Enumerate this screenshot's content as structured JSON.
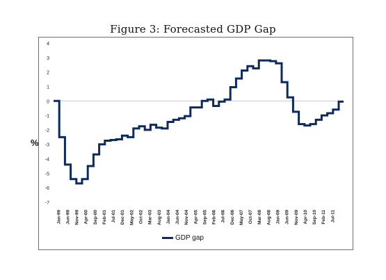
{
  "figure": {
    "title": "Figure 3: Forecasted GDP Gap"
  },
  "chart_data": {
    "type": "line",
    "title": "Figure 3: Forecasted GDP Gap",
    "xlabel": "",
    "ylabel": "%",
    "ylim": [
      -7,
      4
    ],
    "yticks": [
      "4",
      "3",
      "2",
      "1",
      "0",
      "-1",
      "-2",
      "-3",
      "-4",
      "-5",
      "-6",
      "-7"
    ],
    "x_tick_labels": [
      "Jan-99",
      "Jun-99",
      "Nov-99",
      "Apr-00",
      "Sep-00",
      "Feb-01",
      "Jul-01",
      "Dec-01",
      "May-02",
      "Oct-02",
      "Mar-03",
      "Aug-03",
      "Jan-04",
      "Jun-04",
      "Nov-04",
      "Apr-05",
      "Sep-05",
      "Feb-06",
      "Jul-06",
      "Dec-06",
      "May-07",
      "Oct-07",
      "Mar-08",
      "Aug-08",
      "Jan-09",
      "Jun-09",
      "Nov-09",
      "Apr-10",
      "Sep-10",
      "Feb-11",
      "Jul-11"
    ],
    "line_style": "step",
    "zero_line": true,
    "grid": false,
    "legend_position": "bottom",
    "series": [
      {
        "name": "GDP gap",
        "color": "#0c2a5e",
        "x": [
          "1999Q1",
          "1999Q2",
          "1999Q3",
          "1999Q4",
          "2000Q1",
          "2000Q2",
          "2000Q3",
          "2000Q4",
          "2001Q1",
          "2001Q2",
          "2001Q3",
          "2001Q4",
          "2002Q1",
          "2002Q2",
          "2002Q3",
          "2002Q4",
          "2003Q1",
          "2003Q2",
          "2003Q3",
          "2003Q4",
          "2004Q1",
          "2004Q2",
          "2004Q3",
          "2004Q4",
          "2005Q1",
          "2005Q2",
          "2005Q3",
          "2005Q4",
          "2006Q1",
          "2006Q2",
          "2006Q3",
          "2006Q4",
          "2007Q1",
          "2007Q2",
          "2007Q3",
          "2007Q4",
          "2008Q1",
          "2008Q2",
          "2008Q3",
          "2008Q4",
          "2009Q1",
          "2009Q2",
          "2009Q3",
          "2009Q4",
          "2010Q1",
          "2010Q2",
          "2010Q3",
          "2010Q4",
          "2011Q1",
          "2011Q2",
          "2011Q3"
        ],
        "values": [
          0.0,
          -2.5,
          -4.4,
          -5.4,
          -5.7,
          -5.4,
          -4.5,
          -3.7,
          -3.0,
          -2.75,
          -2.7,
          -2.65,
          -2.4,
          -2.5,
          -1.9,
          -1.75,
          -2.0,
          -1.65,
          -1.85,
          -1.9,
          -1.45,
          -1.3,
          -1.2,
          -1.05,
          -0.45,
          -0.45,
          0.0,
          0.1,
          -0.35,
          -0.05,
          0.1,
          0.95,
          1.55,
          2.1,
          2.4,
          2.25,
          2.8,
          2.8,
          2.75,
          2.6,
          1.3,
          0.25,
          -0.75,
          -1.6,
          -1.7,
          -1.6,
          -1.3,
          -1.0,
          -0.85,
          -0.6,
          -0.05
        ]
      }
    ],
    "legend": [
      "GDP gap"
    ]
  }
}
